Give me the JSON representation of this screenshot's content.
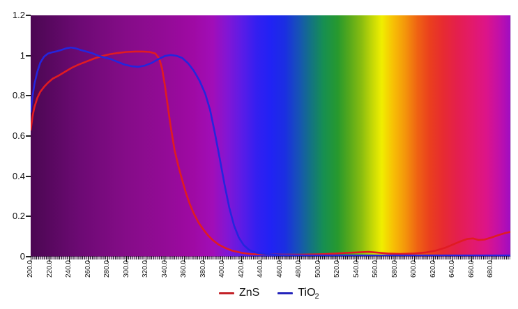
{
  "figure": {
    "title": "",
    "legend": [
      {
        "label": "ZnS",
        "subscript": "",
        "color": "#c32127"
      },
      {
        "label": "TiO",
        "subscript": "2",
        "color": "#2323bb"
      }
    ]
  },
  "chart_data": {
    "type": "line",
    "title": "",
    "xlabel": "",
    "ylabel": "",
    "xlim": [
      200,
      700
    ],
    "ylim": [
      0,
      1.2
    ],
    "grid": false,
    "legend_position": "bottom-center",
    "background": "visible-spectrum gradient (magenta UV band through violet, blue, green, yellow, orange, red, back to purple)",
    "background_gradient": [
      {
        "pos": 0,
        "color": "#4b0752"
      },
      {
        "pos": 10,
        "color": "#6c0a73"
      },
      {
        "pos": 20,
        "color": "#850c88"
      },
      {
        "pos": 28,
        "color": "#930b96"
      },
      {
        "pos": 34,
        "color": "#9f0aa4"
      },
      {
        "pos": 38,
        "color": "#a10eb8"
      },
      {
        "pos": 41,
        "color": "#8216d4"
      },
      {
        "pos": 44,
        "color": "#5c1ce6"
      },
      {
        "pos": 47,
        "color": "#341ff0"
      },
      {
        "pos": 50,
        "color": "#2122f4"
      },
      {
        "pos": 53,
        "color": "#1b2ee2"
      },
      {
        "pos": 56,
        "color": "#1654b4"
      },
      {
        "pos": 58.4,
        "color": "#137383"
      },
      {
        "pos": 61,
        "color": "#168f52"
      },
      {
        "pos": 64,
        "color": "#27992e"
      },
      {
        "pos": 66.4,
        "color": "#55a81c"
      },
      {
        "pos": 69,
        "color": "#8abd10"
      },
      {
        "pos": 71.4,
        "color": "#c8da06"
      },
      {
        "pos": 73.2,
        "color": "#f0ee00"
      },
      {
        "pos": 75.6,
        "color": "#f7bf05"
      },
      {
        "pos": 78,
        "color": "#f4970b"
      },
      {
        "pos": 80.6,
        "color": "#ef6313"
      },
      {
        "pos": 83.2,
        "color": "#ea3f1e"
      },
      {
        "pos": 86,
        "color": "#e72b31"
      },
      {
        "pos": 89,
        "color": "#e41f4e"
      },
      {
        "pos": 92,
        "color": "#e31a6b"
      },
      {
        "pos": 95,
        "color": "#dc1489"
      },
      {
        "pos": 97.6,
        "color": "#c210a8"
      },
      {
        "pos": 100,
        "color": "#a00dc2"
      }
    ],
    "y_ticks": [
      {
        "label": "0",
        "value": 0
      },
      {
        "label": "0.2",
        "value": 0.2
      },
      {
        "label": "0.4",
        "value": 0.4
      },
      {
        "label": "0.6",
        "value": 0.6
      },
      {
        "label": "0.8",
        "value": 0.8
      },
      {
        "label": "1",
        "value": 1
      },
      {
        "label": "1.2",
        "value": 1.2
      }
    ],
    "x_ticks": [
      {
        "label": "200.0",
        "value": 200
      },
      {
        "label": "220.0",
        "value": 220
      },
      {
        "label": "240.0",
        "value": 240
      },
      {
        "label": "260.0",
        "value": 260
      },
      {
        "label": "280.0",
        "value": 280
      },
      {
        "label": "300.0",
        "value": 300
      },
      {
        "label": "320.0",
        "value": 320
      },
      {
        "label": "340.0",
        "value": 340
      },
      {
        "label": "360.0",
        "value": 360
      },
      {
        "label": "380.0",
        "value": 380
      },
      {
        "label": "400.0",
        "value": 400
      },
      {
        "label": "420.0",
        "value": 420
      },
      {
        "label": "440.0",
        "value": 440
      },
      {
        "label": "460.0",
        "value": 460
      },
      {
        "label": "480.0",
        "value": 480
      },
      {
        "label": "500.0",
        "value": 500
      },
      {
        "label": "520.0",
        "value": 520
      },
      {
        "label": "540.0",
        "value": 540
      },
      {
        "label": "560.0",
        "value": 560
      },
      {
        "label": "580.0",
        "value": 580
      },
      {
        "label": "600.0",
        "value": 600
      },
      {
        "label": "620.0",
        "value": 620
      },
      {
        "label": "640.0",
        "value": 640
      },
      {
        "label": "660.0",
        "value": 660
      },
      {
        "label": "680.0",
        "value": 680
      }
    ],
    "series": [
      {
        "name": "ZnS",
        "color": "#e01b22",
        "x": [
          200,
          202,
          204,
          207,
          210,
          214,
          218,
          223,
          229,
          236,
          243,
          250,
          258,
          266,
          274,
          282,
          291,
          300,
          309,
          317,
          324,
          330,
          334,
          337,
          340,
          343,
          346,
          350,
          354,
          358,
          362,
          366,
          370,
          375,
          380,
          385,
          390,
          396,
          402,
          410,
          420,
          430,
          445,
          460,
          480,
          500,
          515,
          530,
          542,
          552,
          560,
          572,
          585,
          600,
          612,
          622,
          632,
          641,
          649,
          655,
          661,
          667,
          673,
          680,
          688,
          695,
          700
        ],
        "y": [
          0.63,
          0.7,
          0.745,
          0.79,
          0.82,
          0.845,
          0.865,
          0.885,
          0.9,
          0.92,
          0.94,
          0.955,
          0.97,
          0.985,
          0.997,
          1.006,
          1.013,
          1.018,
          1.02,
          1.02,
          1.018,
          1.01,
          0.985,
          0.935,
          0.85,
          0.745,
          0.645,
          0.53,
          0.45,
          0.38,
          0.315,
          0.26,
          0.215,
          0.17,
          0.135,
          0.105,
          0.082,
          0.06,
          0.045,
          0.03,
          0.019,
          0.013,
          0.011,
          0.01,
          0.01,
          0.012,
          0.015,
          0.019,
          0.022,
          0.024,
          0.021,
          0.016,
          0.014,
          0.016,
          0.021,
          0.03,
          0.044,
          0.062,
          0.078,
          0.088,
          0.091,
          0.083,
          0.085,
          0.095,
          0.108,
          0.118,
          0.123
        ]
      },
      {
        "name": "TiO2",
        "color": "#2525dd",
        "x": [
          200,
          202,
          204,
          207,
          210,
          214,
          218,
          222,
          227,
          232,
          237,
          242,
          247,
          252,
          258,
          264,
          270,
          277,
          284,
          291,
          298,
          305,
          312,
          319,
          326,
          333,
          340,
          346,
          352,
          358,
          364,
          370,
          376,
          382,
          387,
          392,
          397,
          402,
          407,
          412,
          417,
          422,
          428,
          435,
          445,
          460,
          490,
          530,
          570,
          610,
          650,
          690,
          700
        ],
        "y": [
          0.72,
          0.8,
          0.86,
          0.92,
          0.965,
          0.995,
          1.01,
          1.016,
          1.021,
          1.028,
          1.036,
          1.04,
          1.036,
          1.028,
          1.02,
          1.012,
          1.0,
          0.99,
          0.982,
          0.968,
          0.955,
          0.947,
          0.944,
          0.95,
          0.963,
          0.982,
          0.998,
          1.003,
          0.999,
          0.988,
          0.962,
          0.925,
          0.875,
          0.81,
          0.73,
          0.615,
          0.49,
          0.36,
          0.245,
          0.155,
          0.095,
          0.058,
          0.033,
          0.02,
          0.012,
          0.008,
          0.006,
          0.006,
          0.006,
          0.006,
          0.006,
          0.006,
          0.006
        ]
      }
    ]
  }
}
